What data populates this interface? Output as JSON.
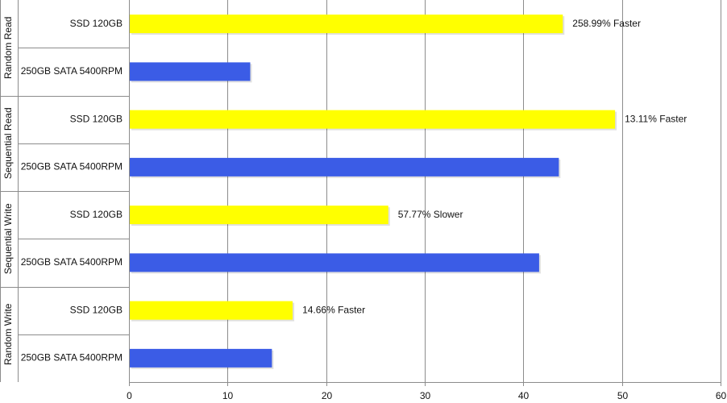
{
  "chart_data": {
    "type": "bar",
    "orientation": "horizontal",
    "grid": true,
    "xlim": [
      0,
      60
    ],
    "xticks": [
      0,
      10,
      20,
      30,
      40,
      50,
      60
    ],
    "groups": [
      {
        "name": "Random Read",
        "bars": [
          {
            "label": "SSD 120GB",
            "value": 44,
            "color": "#ffff00",
            "annotation": "258.99% Faster"
          },
          {
            "label": "250GB SATA 5400RPM",
            "value": 12.3,
            "color": "#3b5ce6",
            "annotation": ""
          }
        ]
      },
      {
        "name": "Sequential Read",
        "bars": [
          {
            "label": "SSD 120GB",
            "value": 49.3,
            "color": "#ffff00",
            "annotation": "13.11% Faster"
          },
          {
            "label": "250GB SATA 5400RPM",
            "value": 43.6,
            "color": "#3b5ce6",
            "annotation": ""
          }
        ]
      },
      {
        "name": "Sequential Write",
        "bars": [
          {
            "label": "SSD 120GB",
            "value": 26.3,
            "color": "#ffff00",
            "annotation": "57.77% Slower"
          },
          {
            "label": "250GB SATA 5400RPM",
            "value": 41.6,
            "color": "#3b5ce6",
            "annotation": ""
          }
        ]
      },
      {
        "name": "Random Write",
        "bars": [
          {
            "label": "SSD 120GB",
            "value": 16.6,
            "color": "#ffff00",
            "annotation": "14.66% Faster"
          },
          {
            "label": "250GB SATA 5400RPM",
            "value": 14.5,
            "color": "#3b5ce6",
            "annotation": ""
          }
        ]
      }
    ]
  }
}
